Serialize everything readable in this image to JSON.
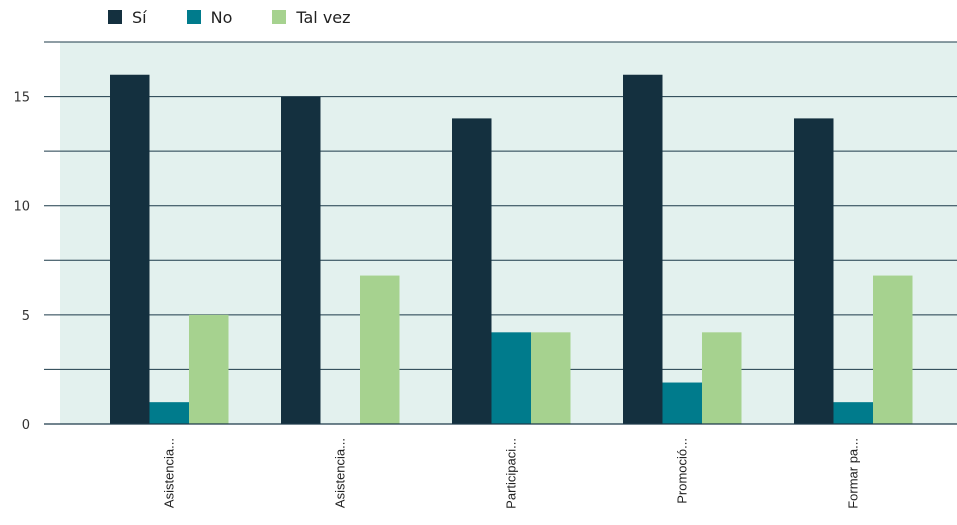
{
  "chart_data": {
    "type": "bar",
    "categories": [
      "Asistencia...",
      "Asistencia...",
      "Participaci...",
      "Promoció...",
      "Formar pa..."
    ],
    "series": [
      {
        "name": "Sí",
        "color": "#14303f",
        "values": [
          16,
          15,
          14,
          16,
          14
        ]
      },
      {
        "name": "No",
        "color": "#007b8c",
        "values": [
          1,
          0,
          4.2,
          1.9,
          1
        ]
      },
      {
        "name": "Tal vez",
        "color": "#a6d28f",
        "values": [
          5,
          6.8,
          4.2,
          4.2,
          6.8
        ]
      }
    ],
    "yticks": [
      "0",
      "5",
      "10",
      "15"
    ],
    "ylim": [
      0,
      17.5
    ],
    "grid_step": 2.5,
    "legend": "top-left",
    "plot_background": "#e3f1ee"
  }
}
